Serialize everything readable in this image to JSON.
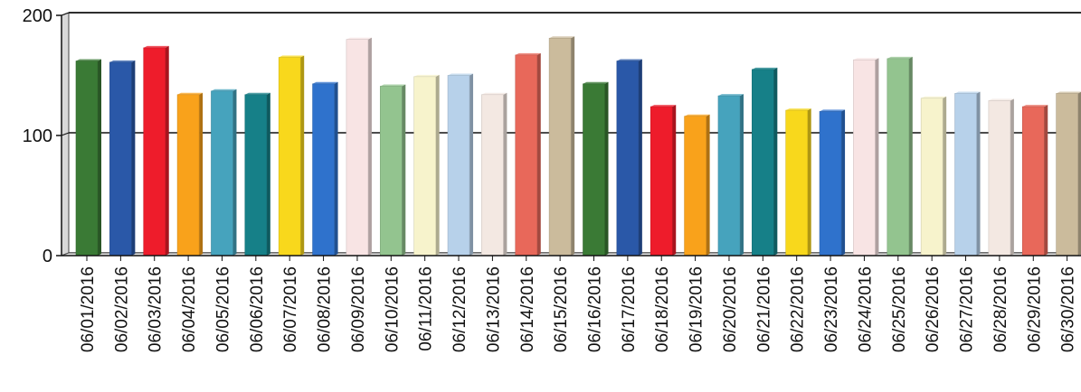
{
  "chart_data": {
    "type": "bar",
    "title": "",
    "xlabel": "",
    "ylabel": "",
    "ylim": [
      0,
      200
    ],
    "yticks": [
      0,
      100,
      200
    ],
    "grid": true,
    "legend": "none",
    "categories": [
      "06/01/2016",
      "06/02/2016",
      "06/03/2016",
      "06/04/2016",
      "06/05/2016",
      "06/06/2016",
      "06/07/2016",
      "06/08/2016",
      "06/09/2016",
      "06/10/2016",
      "06/11/2016",
      "06/12/2016",
      "06/13/2016",
      "06/14/2016",
      "06/15/2016",
      "06/16/2016",
      "06/17/2016",
      "06/18/2016",
      "06/19/2016",
      "06/20/2016",
      "06/21/2016",
      "06/22/2016",
      "06/23/2016",
      "06/24/2016",
      "06/25/2016",
      "06/26/2016",
      "06/27/2016",
      "06/28/2016",
      "06/29/2016",
      "06/30/2016"
    ],
    "values": [
      162,
      161,
      173,
      134,
      137,
      134,
      165,
      143,
      180,
      141,
      149,
      150,
      134,
      167,
      181,
      143,
      162,
      124,
      116,
      133,
      155,
      121,
      120,
      163,
      164,
      131,
      135,
      129,
      124,
      135
    ],
    "colors": [
      "#3a7a35",
      "#2a58a8",
      "#ee1c2b",
      "#f9a21b",
      "#46a3bd",
      "#168088",
      "#f8d81c",
      "#2f72cc",
      "#f8e4e4",
      "#93c48f",
      "#f7f3cc",
      "#b7d1ea",
      "#f3e8e2",
      "#e8685a",
      "#cbbb9c",
      "#3a7a35",
      "#2a58a8",
      "#ee1c2b",
      "#f9a21b",
      "#46a3bd",
      "#168088",
      "#f8d81c",
      "#2f72cc",
      "#f8e4e4",
      "#93c48f",
      "#f7f3cc",
      "#b7d1ea",
      "#f3e8e2",
      "#e8685a",
      "#cbbb9c"
    ]
  }
}
